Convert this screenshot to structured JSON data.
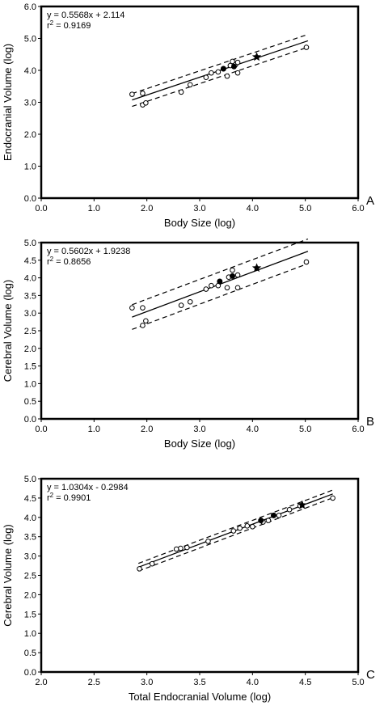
{
  "chart_data": [
    {
      "type": "scatter",
      "panel_label": "A",
      "xlabel": "Body Size (log)",
      "ylabel": "Endocranial Volume (log)",
      "xlim": [
        0,
        6
      ],
      "ylim": [
        0,
        6
      ],
      "xticks": [
        "0.0",
        "1.0",
        "2.0",
        "3.0",
        "4.0",
        "5.0",
        "6.0"
      ],
      "yticks": [
        "0.0",
        "1.0",
        "2.0",
        "3.0",
        "4.0",
        "5.0",
        "6.0"
      ],
      "equation": "y = 0.5568x + 2.114",
      "r2_label": "r2 = 0.9169",
      "fit": {
        "slope": 0.5568,
        "intercept": 2.114,
        "x_range": [
          1.72,
          5.05
        ],
        "band_offset": 0.2
      },
      "points": [
        {
          "x": 1.72,
          "y": 3.25
        },
        {
          "x": 1.92,
          "y": 3.28
        },
        {
          "x": 1.92,
          "y": 2.92
        },
        {
          "x": 1.98,
          "y": 2.98
        },
        {
          "x": 2.65,
          "y": 3.32
        },
        {
          "x": 2.82,
          "y": 3.55
        },
        {
          "x": 3.12,
          "y": 3.78
        },
        {
          "x": 3.22,
          "y": 3.92
        },
        {
          "x": 3.35,
          "y": 3.95
        },
        {
          "x": 3.45,
          "y": 4.05
        },
        {
          "x": 3.52,
          "y": 3.82
        },
        {
          "x": 3.58,
          "y": 4.15
        },
        {
          "x": 3.62,
          "y": 4.28
        },
        {
          "x": 3.68,
          "y": 4.18
        },
        {
          "x": 3.72,
          "y": 4.25
        },
        {
          "x": 3.72,
          "y": 3.92
        },
        {
          "x": 5.02,
          "y": 4.72
        }
      ],
      "filled_points": [
        {
          "x": 3.45,
          "y": 4.05
        },
        {
          "x": 3.65,
          "y": 4.12
        }
      ],
      "star_points": [
        {
          "x": 4.08,
          "y": 4.42
        }
      ]
    },
    {
      "type": "scatter",
      "panel_label": "B",
      "xlabel": "Body Size (log)",
      "ylabel": "Cerebral Volume (log)",
      "xlim": [
        0,
        6
      ],
      "ylim": [
        0,
        5
      ],
      "xticks": [
        "0.0",
        "1.0",
        "2.0",
        "3.0",
        "4.0",
        "5.0",
        "6.0"
      ],
      "yticks": [
        "0.0",
        "0.5",
        "1.0",
        "1.5",
        "2.0",
        "2.5",
        "3.0",
        "3.5",
        "4.0",
        "4.5",
        "5.0"
      ],
      "equation": "y = 0.5602x + 1.9238",
      "r2_label": "r2 = 0.8656",
      "fit": {
        "slope": 0.5602,
        "intercept": 1.9238,
        "x_range": [
          1.72,
          5.05
        ],
        "band_offset": 0.35
      },
      "points": [
        {
          "x": 1.72,
          "y": 3.15
        },
        {
          "x": 1.92,
          "y": 3.15
        },
        {
          "x": 1.92,
          "y": 2.65
        },
        {
          "x": 1.98,
          "y": 2.78
        },
        {
          "x": 2.65,
          "y": 3.22
        },
        {
          "x": 2.82,
          "y": 3.32
        },
        {
          "x": 3.12,
          "y": 3.68
        },
        {
          "x": 3.22,
          "y": 3.78
        },
        {
          "x": 3.35,
          "y": 3.78
        },
        {
          "x": 3.52,
          "y": 3.72
        },
        {
          "x": 3.55,
          "y": 4.02
        },
        {
          "x": 3.62,
          "y": 4.22
        },
        {
          "x": 3.72,
          "y": 4.08
        },
        {
          "x": 3.72,
          "y": 3.72
        },
        {
          "x": 5.02,
          "y": 4.45
        }
      ],
      "filled_points": [
        {
          "x": 3.38,
          "y": 3.9
        },
        {
          "x": 3.62,
          "y": 4.05
        }
      ],
      "star_points": [
        {
          "x": 4.08,
          "y": 4.28
        }
      ]
    },
    {
      "type": "scatter",
      "panel_label": "C",
      "xlabel": "Total Endocranial Volume (log)",
      "ylabel": "Cerebral Volume (log)",
      "xlim": [
        2,
        5
      ],
      "ylim": [
        0,
        5
      ],
      "xticks": [
        "2.0",
        "2.5",
        "3.0",
        "3.5",
        "4.0",
        "4.5",
        "5.0"
      ],
      "yticks": [
        "0.0",
        "0.5",
        "1.0",
        "1.5",
        "2.0",
        "2.5",
        "3.0",
        "3.5",
        "4.0",
        "4.5",
        "5.0"
      ],
      "equation": "y = 1.0304x - 0.2984",
      "r2_label": "r2 = 0.9901",
      "fit": {
        "slope": 1.0304,
        "intercept": -0.2984,
        "x_range": [
          2.92,
          4.76
        ],
        "band_offset": 0.1
      },
      "points": [
        {
          "x": 2.93,
          "y": 2.67
        },
        {
          "x": 3.05,
          "y": 2.8
        },
        {
          "x": 3.28,
          "y": 3.18
        },
        {
          "x": 3.32,
          "y": 3.2
        },
        {
          "x": 3.38,
          "y": 3.22
        },
        {
          "x": 3.58,
          "y": 3.38
        },
        {
          "x": 3.82,
          "y": 3.65
        },
        {
          "x": 3.88,
          "y": 3.72
        },
        {
          "x": 3.95,
          "y": 3.78
        },
        {
          "x": 4.0,
          "y": 3.76
        },
        {
          "x": 4.1,
          "y": 3.88
        },
        {
          "x": 4.15,
          "y": 3.92
        },
        {
          "x": 4.25,
          "y": 4.05
        },
        {
          "x": 4.35,
          "y": 4.2
        },
        {
          "x": 4.45,
          "y": 4.3
        },
        {
          "x": 4.76,
          "y": 4.5
        }
      ],
      "filled_points": [
        {
          "x": 4.08,
          "y": 3.92
        },
        {
          "x": 4.2,
          "y": 4.05
        }
      ],
      "star_points": [
        {
          "x": 4.47,
          "y": 4.32
        }
      ]
    }
  ]
}
